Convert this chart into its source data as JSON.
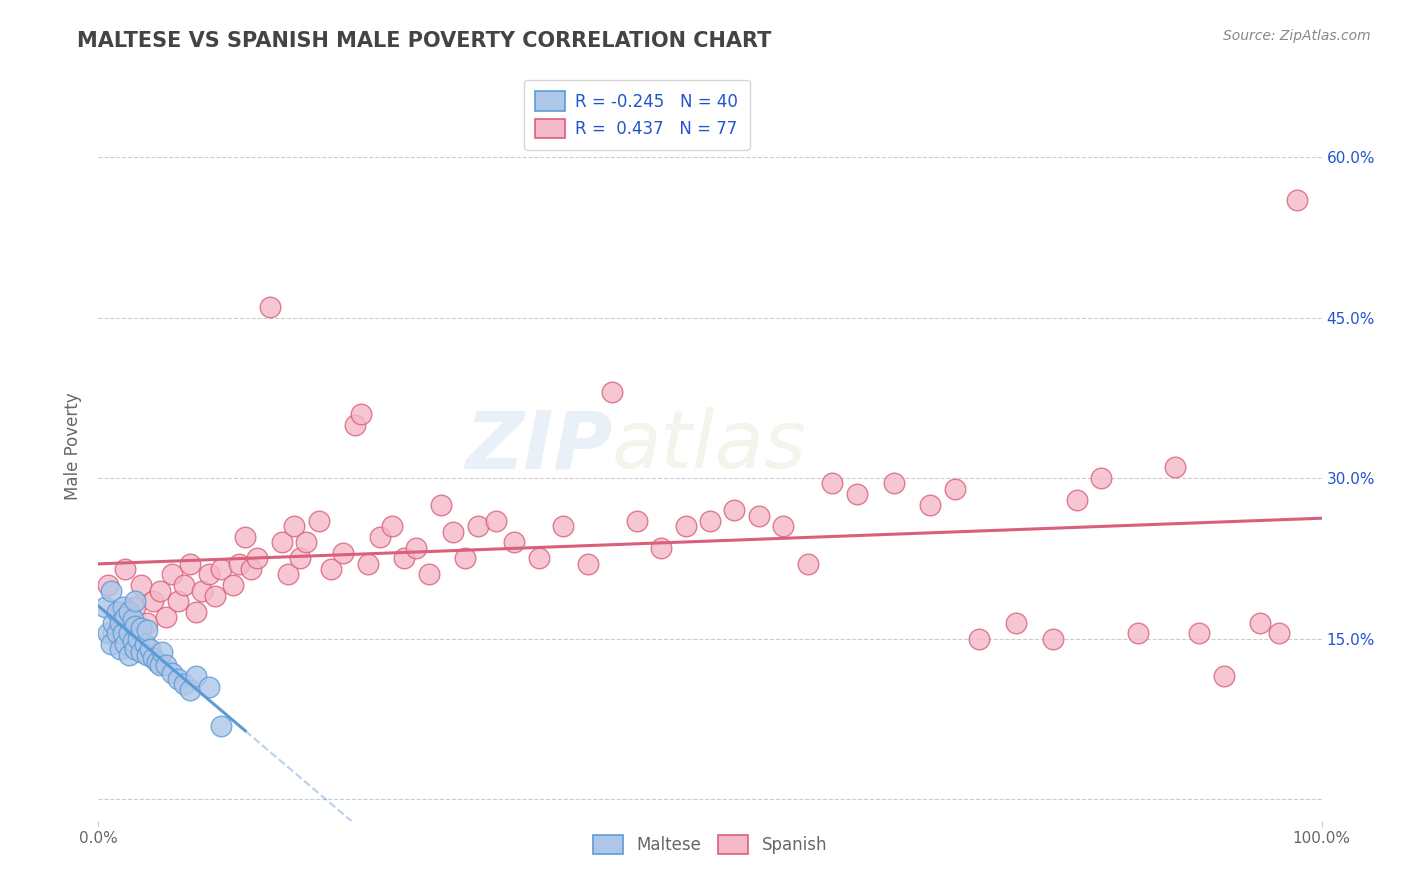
{
  "title": "MALTESE VS SPANISH MALE POVERTY CORRELATION CHART",
  "source_text": "Source: ZipAtlas.com",
  "ylabel": "Male Poverty",
  "xlim": [
    0.0,
    1.0
  ],
  "ylim": [
    -0.02,
    0.68
  ],
  "ytick_positions": [
    0.0,
    0.15,
    0.3,
    0.45,
    0.6
  ],
  "yticklabels_right": [
    "",
    "15.0%",
    "30.0%",
    "45.0%",
    "60.0%"
  ],
  "grid_color": "#cccccc",
  "background_color": "#ffffff",
  "maltese_color": "#aec6e8",
  "maltese_edge_color": "#5b9bd5",
  "spanish_color": "#f4b8c8",
  "spanish_edge_color": "#d9607a",
  "maltese_R": -0.245,
  "maltese_N": 40,
  "spanish_R": 0.437,
  "spanish_N": 77,
  "legend_text_color": "#2255cc",
  "title_color": "#444444",
  "watermark_zip": "ZIP",
  "watermark_atlas": "atlas",
  "maltese_x": [
    0.005,
    0.008,
    0.01,
    0.01,
    0.012,
    0.015,
    0.015,
    0.018,
    0.018,
    0.02,
    0.02,
    0.022,
    0.022,
    0.025,
    0.025,
    0.025,
    0.028,
    0.028,
    0.03,
    0.03,
    0.03,
    0.032,
    0.035,
    0.035,
    0.038,
    0.04,
    0.04,
    0.042,
    0.045,
    0.048,
    0.05,
    0.052,
    0.055,
    0.06,
    0.065,
    0.07,
    0.075,
    0.08,
    0.09,
    0.1
  ],
  "maltese_y": [
    0.18,
    0.155,
    0.195,
    0.145,
    0.165,
    0.155,
    0.175,
    0.14,
    0.165,
    0.155,
    0.18,
    0.145,
    0.17,
    0.135,
    0.155,
    0.175,
    0.148,
    0.168,
    0.14,
    0.162,
    0.185,
    0.15,
    0.138,
    0.16,
    0.145,
    0.135,
    0.158,
    0.14,
    0.132,
    0.128,
    0.125,
    0.138,
    0.125,
    0.118,
    0.112,
    0.108,
    0.102,
    0.115,
    0.105,
    0.068
  ],
  "spanish_x": [
    0.008,
    0.012,
    0.018,
    0.022,
    0.025,
    0.03,
    0.035,
    0.04,
    0.045,
    0.05,
    0.055,
    0.06,
    0.065,
    0.07,
    0.075,
    0.08,
    0.085,
    0.09,
    0.095,
    0.1,
    0.11,
    0.115,
    0.12,
    0.125,
    0.13,
    0.14,
    0.15,
    0.155,
    0.16,
    0.165,
    0.17,
    0.18,
    0.19,
    0.2,
    0.21,
    0.215,
    0.22,
    0.23,
    0.24,
    0.25,
    0.26,
    0.27,
    0.28,
    0.29,
    0.3,
    0.31,
    0.325,
    0.34,
    0.36,
    0.38,
    0.4,
    0.42,
    0.44,
    0.46,
    0.48,
    0.5,
    0.52,
    0.54,
    0.56,
    0.58,
    0.6,
    0.62,
    0.65,
    0.68,
    0.7,
    0.72,
    0.75,
    0.78,
    0.8,
    0.82,
    0.85,
    0.88,
    0.9,
    0.92,
    0.95,
    0.965,
    0.98
  ],
  "spanish_y": [
    0.2,
    0.155,
    0.175,
    0.215,
    0.16,
    0.18,
    0.2,
    0.165,
    0.185,
    0.195,
    0.17,
    0.21,
    0.185,
    0.2,
    0.22,
    0.175,
    0.195,
    0.21,
    0.19,
    0.215,
    0.2,
    0.22,
    0.245,
    0.215,
    0.225,
    0.46,
    0.24,
    0.21,
    0.255,
    0.225,
    0.24,
    0.26,
    0.215,
    0.23,
    0.35,
    0.36,
    0.22,
    0.245,
    0.255,
    0.225,
    0.235,
    0.21,
    0.275,
    0.25,
    0.225,
    0.255,
    0.26,
    0.24,
    0.225,
    0.255,
    0.22,
    0.38,
    0.26,
    0.235,
    0.255,
    0.26,
    0.27,
    0.265,
    0.255,
    0.22,
    0.295,
    0.285,
    0.295,
    0.275,
    0.29,
    0.15,
    0.165,
    0.15,
    0.28,
    0.3,
    0.155,
    0.31,
    0.155,
    0.115,
    0.165,
    0.155,
    0.56
  ]
}
